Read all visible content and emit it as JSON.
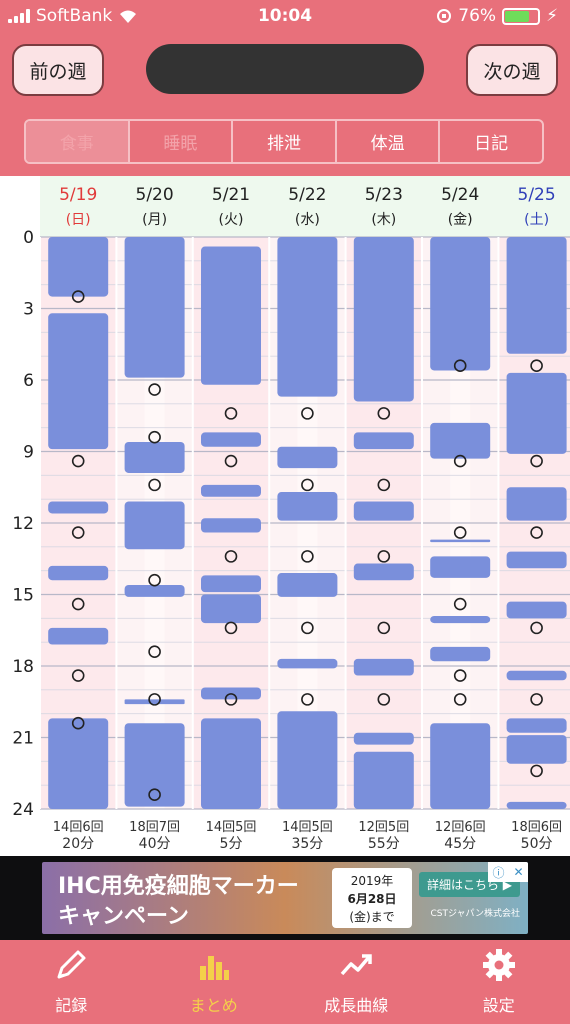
{
  "status": {
    "carrier": "SoftBank",
    "time": "10:04",
    "battery": "76%"
  },
  "header": {
    "prev_label": "前の週",
    "next_label": "次の週"
  },
  "tabs": [
    {
      "label": "食事",
      "state": "active"
    },
    {
      "label": "睡眠",
      "state": "dim"
    },
    {
      "label": "排泄",
      "state": "normal"
    },
    {
      "label": "体温",
      "state": "normal"
    },
    {
      "label": "日記",
      "state": "normal"
    }
  ],
  "colors": {
    "accent": "#e8707b",
    "bar": "#7a8fdb",
    "sunday": "#e13a3a",
    "saturday": "#2f3fb8"
  },
  "chart_data": {
    "type": "weekly-timeline",
    "hour_ticks": [
      "0",
      "3",
      "6",
      "9",
      "12",
      "15",
      "18",
      "21",
      "24"
    ],
    "days": [
      {
        "date": "5/19",
        "weekday": "(日)",
        "kind": "sun",
        "summary_top": "14回6回",
        "summary_bottom": "20分",
        "sleep": [
          [
            0,
            2.5
          ],
          [
            3.2,
            8.9
          ],
          [
            11.1,
            11.6
          ],
          [
            13.8,
            14.4
          ],
          [
            16.4,
            17.1
          ],
          [
            20.2,
            24
          ]
        ],
        "events": [
          2.5,
          9.4,
          12.4,
          15.4,
          18.4,
          20.4
        ]
      },
      {
        "date": "5/20",
        "weekday": "(月)",
        "kind": "weekday",
        "summary_top": "18回7回",
        "summary_bottom": "40分",
        "sleep": [
          [
            0,
            5.9
          ],
          [
            8.6,
            9.9
          ],
          [
            11.1,
            13.1
          ],
          [
            14.6,
            15.1
          ],
          [
            19.4,
            19.6
          ],
          [
            20.4,
            23.9
          ]
        ],
        "events": [
          6.4,
          8.4,
          10.4,
          14.4,
          17.4,
          19.4,
          23.4
        ]
      },
      {
        "date": "5/21",
        "weekday": "(火)",
        "kind": "weekday",
        "summary_top": "14回5回",
        "summary_bottom": "5分",
        "sleep": [
          [
            0.4,
            6.2
          ],
          [
            8.2,
            8.8
          ],
          [
            10.4,
            10.9
          ],
          [
            11.8,
            12.4
          ],
          [
            14.2,
            14.9
          ],
          [
            15.0,
            16.2
          ],
          [
            18.9,
            19.4
          ],
          [
            20.2,
            24
          ]
        ],
        "events": [
          7.4,
          9.4,
          13.4,
          16.4,
          19.4
        ]
      },
      {
        "date": "5/22",
        "weekday": "(水)",
        "kind": "weekday",
        "summary_top": "14回5回",
        "summary_bottom": "35分",
        "sleep": [
          [
            0,
            6.7
          ],
          [
            8.8,
            9.7
          ],
          [
            10.7,
            11.9
          ],
          [
            14.1,
            15.1
          ],
          [
            17.7,
            18.1
          ],
          [
            19.9,
            24
          ]
        ],
        "events": [
          7.4,
          10.4,
          13.4,
          16.4,
          19.4
        ]
      },
      {
        "date": "5/23",
        "weekday": "(木)",
        "kind": "weekday",
        "summary_top": "12回5回",
        "summary_bottom": "55分",
        "sleep": [
          [
            0,
            6.9
          ],
          [
            8.2,
            8.9
          ],
          [
            11.1,
            11.9
          ],
          [
            13.7,
            14.4
          ],
          [
            17.7,
            18.4
          ],
          [
            20.8,
            21.3
          ],
          [
            21.6,
            24
          ]
        ],
        "events": [
          7.4,
          10.4,
          13.4,
          16.4,
          19.4
        ]
      },
      {
        "date": "5/24",
        "weekday": "(金)",
        "kind": "weekday",
        "summary_top": "12回6回",
        "summary_bottom": "45分",
        "sleep": [
          [
            0,
            5.6
          ],
          [
            7.8,
            9.3
          ],
          [
            12.7,
            12.8
          ],
          [
            13.4,
            14.3
          ],
          [
            15.9,
            16.2
          ],
          [
            17.2,
            17.8
          ],
          [
            20.4,
            24
          ]
        ],
        "events": [
          5.4,
          9.4,
          12.4,
          15.4,
          18.4,
          19.4
        ]
      },
      {
        "date": "5/25",
        "weekday": "(土)",
        "kind": "sat",
        "summary_top": "18回6回",
        "summary_bottom": "50分",
        "sleep": [
          [
            0,
            4.9
          ],
          [
            5.7,
            9.1
          ],
          [
            10.5,
            11.9
          ],
          [
            13.2,
            13.9
          ],
          [
            15.3,
            16.0
          ],
          [
            18.2,
            18.6
          ],
          [
            20.2,
            20.8
          ],
          [
            20.9,
            22.1
          ],
          [
            23.7,
            24
          ]
        ],
        "events": [
          5.4,
          9.4,
          12.4,
          16.4,
          19.4,
          22.4
        ]
      }
    ]
  },
  "ad": {
    "headline": "IHC用免疫細胞マーカー",
    "subline": "キャンペーン",
    "date_line1": "2019年",
    "date_line2": "6月28日",
    "date_line3": "(金)まで",
    "cta": "詳細はこちら ▶",
    "company": "CSTジャパン株式会社"
  },
  "bottom_nav": [
    {
      "label": "記録",
      "icon": "pencil-icon",
      "active": false
    },
    {
      "label": "まとめ",
      "icon": "bar-chart-icon",
      "active": true
    },
    {
      "label": "成長曲線",
      "icon": "growth-curve-icon",
      "active": false
    },
    {
      "label": "設定",
      "icon": "gear-icon",
      "active": false
    }
  ]
}
